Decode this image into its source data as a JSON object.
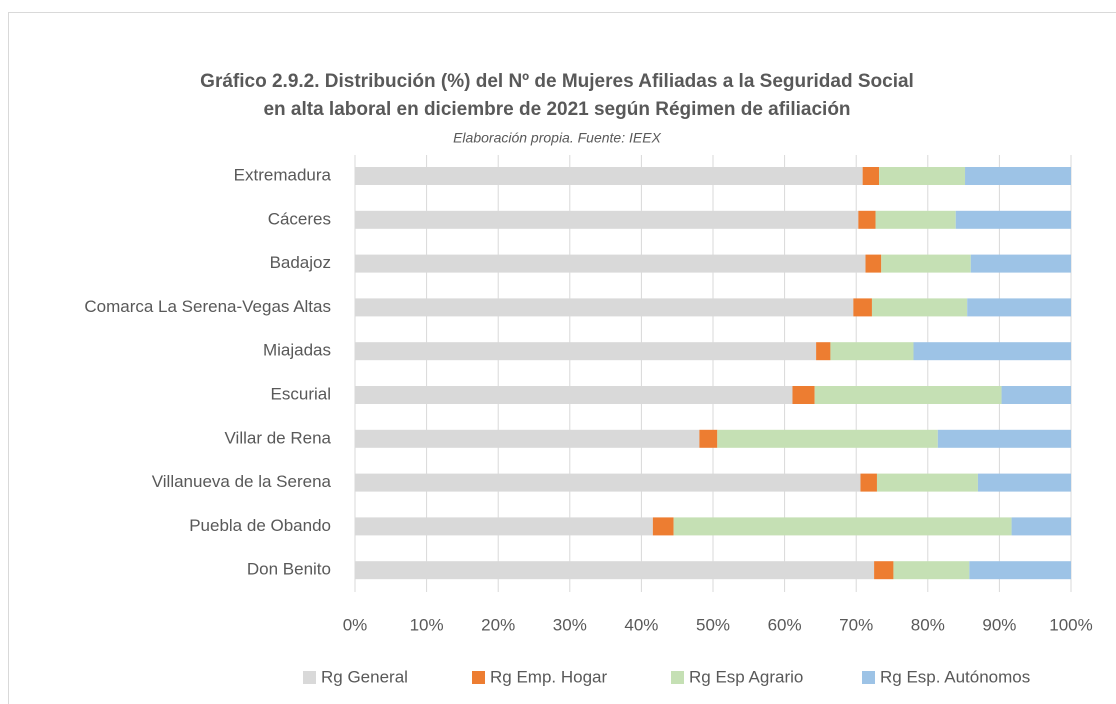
{
  "chart_data": {
    "type": "stacked-bar-horizontal",
    "title": [
      "Gráfico 2.9.2. Distribución (%) del  Nº de Mujeres Afiliadas a la Seguridad Social",
      "en alta laboral en diciembre de 2021 según Régimen de afiliación"
    ],
    "subtitle": "Elaboración propia. Fuente: IEEX",
    "categories": [
      "Extremadura",
      "Cáceres",
      "Badajoz",
      "Comarca La Serena-Vegas Altas",
      "Miajadas",
      "Escurial",
      "Villar de Rena",
      "Villanueva de la Serena",
      "Puebla de Obando",
      "Don Benito"
    ],
    "series": [
      {
        "name": "Rg General",
        "color": "#d9d9d9",
        "values": [
          70.9,
          70.3,
          71.3,
          69.6,
          64.4,
          61.1,
          48.1,
          70.6,
          41.6,
          72.5
        ]
      },
      {
        "name": "Rg Emp. Hogar",
        "color": "#ed7d31",
        "values": [
          2.3,
          2.4,
          2.2,
          2.6,
          2.0,
          3.1,
          2.5,
          2.3,
          2.9,
          2.7
        ]
      },
      {
        "name": "Rg Esp Agrario",
        "color": "#c5e0b4",
        "values": [
          12.0,
          11.2,
          12.5,
          13.3,
          11.6,
          26.1,
          30.8,
          14.1,
          47.2,
          10.6
        ]
      },
      {
        "name": "Rg Esp. Autónomos",
        "color": "#9dc3e6",
        "values": [
          14.8,
          16.1,
          14.0,
          14.5,
          22.0,
          9.7,
          18.6,
          13.0,
          8.3,
          14.2
        ]
      }
    ],
    "xlim": [
      0,
      100
    ],
    "xticks": [
      {
        "value": 0,
        "label": "0%"
      },
      {
        "value": 10,
        "label": "10%"
      },
      {
        "value": 20,
        "label": "20%"
      },
      {
        "value": 30,
        "label": "30%"
      },
      {
        "value": 40,
        "label": "40%"
      },
      {
        "value": 50,
        "label": "50%"
      },
      {
        "value": 60,
        "label": "60%"
      },
      {
        "value": 70,
        "label": "70%"
      },
      {
        "value": 80,
        "label": "80%"
      },
      {
        "value": 90,
        "label": "90%"
      },
      {
        "value": 100,
        "label": "100%"
      }
    ],
    "grid": true,
    "legend": "bottom"
  }
}
